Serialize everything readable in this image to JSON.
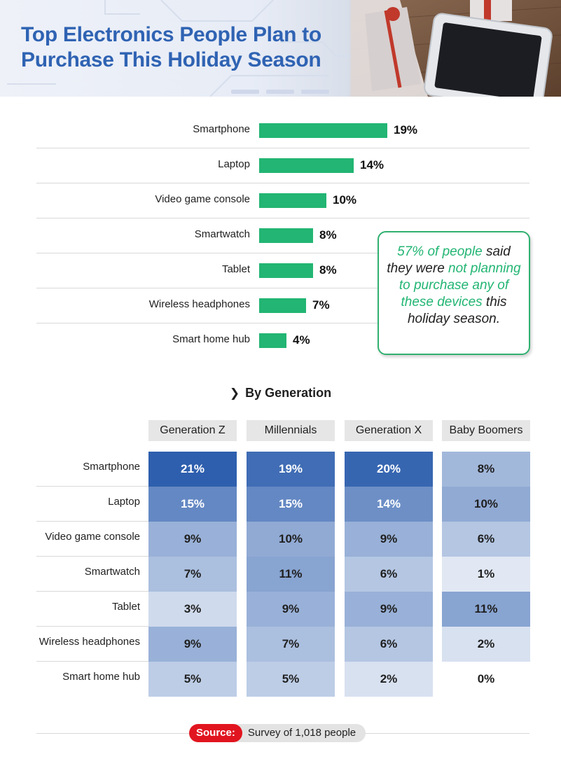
{
  "header": {
    "title": "Top Electronics People Plan to Purchase This Holiday Season"
  },
  "callout": {
    "part1_highlight": "57% of people",
    "part2": " said they were ",
    "part3_highlight": "not planning to purchase any of these devices",
    "part4": " this holiday season."
  },
  "generation": {
    "heading": "By Generation"
  },
  "source": {
    "label": "Source:",
    "text": "Survey of 1,018 people"
  },
  "colors": {
    "bar": "#22b573",
    "title": "#2f63b3",
    "source_tag": "#e1151f"
  },
  "chart_data": [
    {
      "type": "bar",
      "orientation": "horizontal",
      "categories": [
        "Smartphone",
        "Laptop",
        "Video game console",
        "Smartwatch",
        "Tablet",
        "Wireless headphones",
        "Smart home hub"
      ],
      "values": [
        19,
        14,
        10,
        8,
        8,
        7,
        4
      ],
      "value_labels": [
        "19%",
        "14%",
        "10%",
        "8%",
        "8%",
        "7%",
        "4%"
      ],
      "xlim": [
        0,
        19
      ],
      "grid": false
    },
    {
      "type": "heatmap",
      "columns": [
        "Generation Z",
        "Millennials",
        "Generation X",
        "Baby Boomers"
      ],
      "rows": [
        "Smartphone",
        "Laptop",
        "Video game console",
        "Smartwatch",
        "Tablet",
        "Wireless headphones",
        "Smart home hub"
      ],
      "values": [
        [
          21,
          19,
          20,
          8
        ],
        [
          15,
          15,
          14,
          10
        ],
        [
          9,
          10,
          9,
          6
        ],
        [
          7,
          11,
          6,
          1
        ],
        [
          3,
          9,
          9,
          11
        ],
        [
          9,
          7,
          6,
          2
        ],
        [
          5,
          5,
          2,
          0
        ]
      ],
      "unit": "%",
      "color_scale": [
        "#ffffff",
        "#2e5fae"
      ]
    }
  ]
}
